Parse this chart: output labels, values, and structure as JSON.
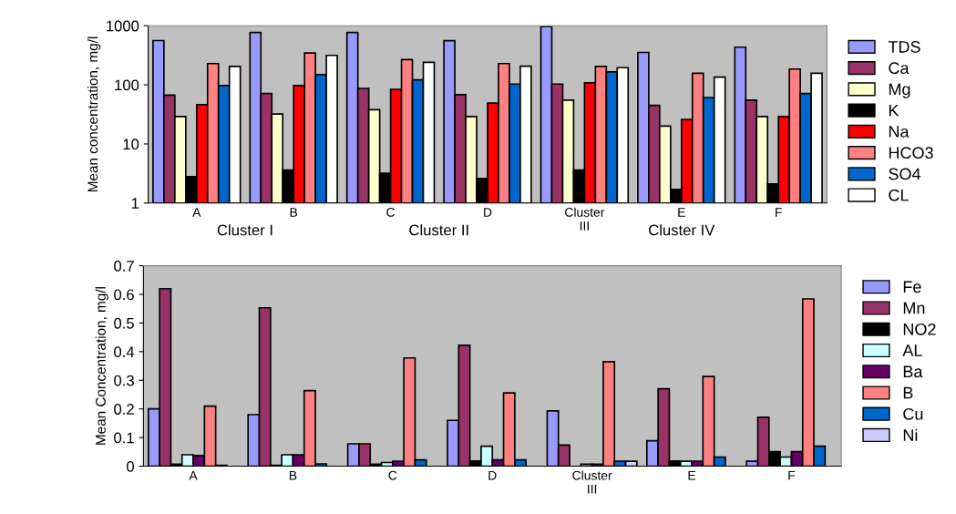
{
  "chart_data": [
    {
      "type": "bar",
      "ylabel": "Mean concentration, mg/l",
      "log": "y",
      "ylim": [
        1,
        1000
      ],
      "yticks": [
        1,
        10,
        100,
        1000
      ],
      "grid": false,
      "legend": "right",
      "categories": [
        "A",
        "B",
        "C",
        "D",
        "Cluster\nIII",
        "E",
        "F"
      ],
      "annotations": [
        "Cluster I",
        "Cluster II",
        "Cluster IV"
      ],
      "series": [
        {
          "name": "TDS",
          "color": "#9999ff",
          "values": [
            560,
            770,
            770,
            558,
            964,
            353,
            433
          ]
        },
        {
          "name": "Ca",
          "color": "#993366",
          "values": [
            67,
            71,
            87,
            68,
            103,
            45,
            55
          ]
        },
        {
          "name": "Mg",
          "color": "#ffffcc",
          "values": [
            29,
            32,
            38,
            29,
            55,
            20,
            29
          ]
        },
        {
          "name": "K",
          "color": "#000000",
          "values": [
            2.8,
            3.6,
            3.2,
            2.6,
            3.6,
            1.7,
            2.1
          ]
        },
        {
          "name": "Na",
          "color": "#ff0000",
          "values": [
            46,
            97,
            84,
            49,
            108,
            26,
            29
          ]
        },
        {
          "name": "HCO3",
          "color": "#ff8080",
          "values": [
            229,
            345,
            267,
            229,
            205,
            157,
            185
          ]
        },
        {
          "name": "SO4",
          "color": "#0066cc",
          "values": [
            97,
            149,
            121,
            103,
            165,
            61,
            71
          ]
        },
        {
          "name": "CL",
          "color": "#ffffff",
          "values": [
            205,
            315,
            240,
            207,
            195,
            135,
            157
          ]
        }
      ]
    },
    {
      "type": "bar",
      "ylabel": "Mean Concentration, mg/l",
      "ylim": [
        0,
        0.7
      ],
      "yticks": [
        0,
        0.1,
        0.2,
        0.3,
        0.4,
        0.5,
        0.6,
        0.7
      ],
      "grid": false,
      "legend": "right",
      "categories": [
        "A",
        "B",
        "C",
        "D",
        "Cluster\nIII",
        "E",
        "F"
      ],
      "series": [
        {
          "name": "Fe",
          "color": "#9999ff",
          "values": [
            0.2,
            0.18,
            0.078,
            0.16,
            0.193,
            0.089,
            0.017
          ]
        },
        {
          "name": "Mn",
          "color": "#993366",
          "values": [
            0.62,
            0.553,
            0.078,
            0.422,
            0.074,
            0.27,
            0.171
          ]
        },
        {
          "name": "NO2",
          "color": "#000000",
          "values": [
            0.007,
            0.003,
            0.007,
            0.018,
            null,
            0.018,
            0.051
          ]
        },
        {
          "name": "AL",
          "color": "#ccffff",
          "values": [
            0.04,
            0.04,
            0.013,
            0.07,
            0.007,
            0.017,
            0.032
          ]
        },
        {
          "name": "Ba",
          "color": "#660066",
          "values": [
            0.037,
            0.04,
            0.017,
            0.022,
            0.007,
            0.017,
            0.051
          ]
        },
        {
          "name": "B",
          "color": "#ff8080",
          "values": [
            0.21,
            0.264,
            0.378,
            0.256,
            0.365,
            0.313,
            0.584
          ]
        },
        {
          "name": "Cu",
          "color": "#0066cc",
          "values": [
            0.003,
            0.008,
            0.022,
            0.022,
            0.017,
            0.032,
            0.07
          ]
        },
        {
          "name": "Ni",
          "color": "#ccccff",
          "values": [
            null,
            null,
            null,
            null,
            0.017,
            null,
            null
          ]
        }
      ]
    }
  ]
}
